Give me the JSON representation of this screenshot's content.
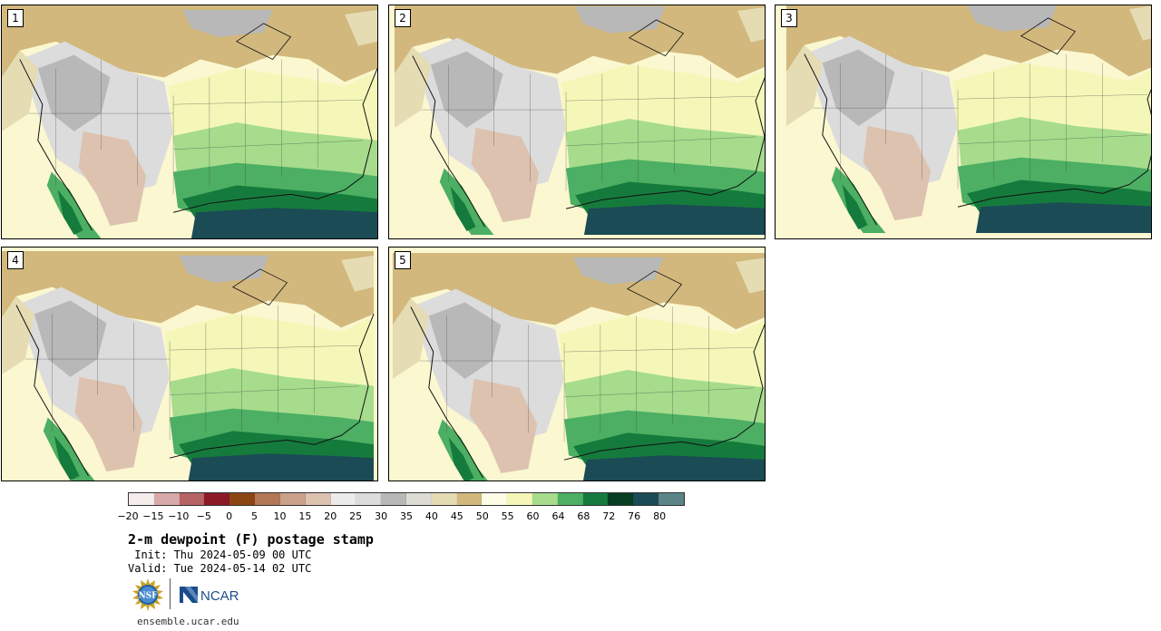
{
  "panels": [
    {
      "label": "1"
    },
    {
      "label": "2"
    },
    {
      "label": "3"
    },
    {
      "label": "4"
    },
    {
      "label": "5"
    }
  ],
  "colorbar": {
    "colors": [
      "#f5ecec",
      "#d8a9a9",
      "#b56363",
      "#8c1a24",
      "#8b4513",
      "#b27755",
      "#c9a08a",
      "#ddc2b0",
      "#ececec",
      "#dcdcdc",
      "#b8b8b8",
      "#dcdcd2",
      "#e6dcb4",
      "#d2b87c",
      "#fefee6",
      "#f5f7b8",
      "#a6dc8c",
      "#4caf63",
      "#157b3c",
      "#063d23",
      "#1b4b55",
      "#5a8486"
    ],
    "tick_labels": [
      "−20",
      "−15",
      "−10",
      "−5",
      "0",
      "5",
      "10",
      "15",
      "20",
      "25",
      "30",
      "35",
      "40",
      "45",
      "50",
      "55",
      "60",
      "64",
      "68",
      "72",
      "76",
      "80"
    ]
  },
  "title": "2-m dewpoint (F) postage stamp",
  "init_text": " Init: Thu 2024-05-09 00 UTC",
  "valid_text": "Valid: Tue 2024-05-14 02 UTC",
  "logos": {
    "nsf": "NSF",
    "ncar": "NCAR"
  },
  "url": "ensemble.ucar.edu"
}
